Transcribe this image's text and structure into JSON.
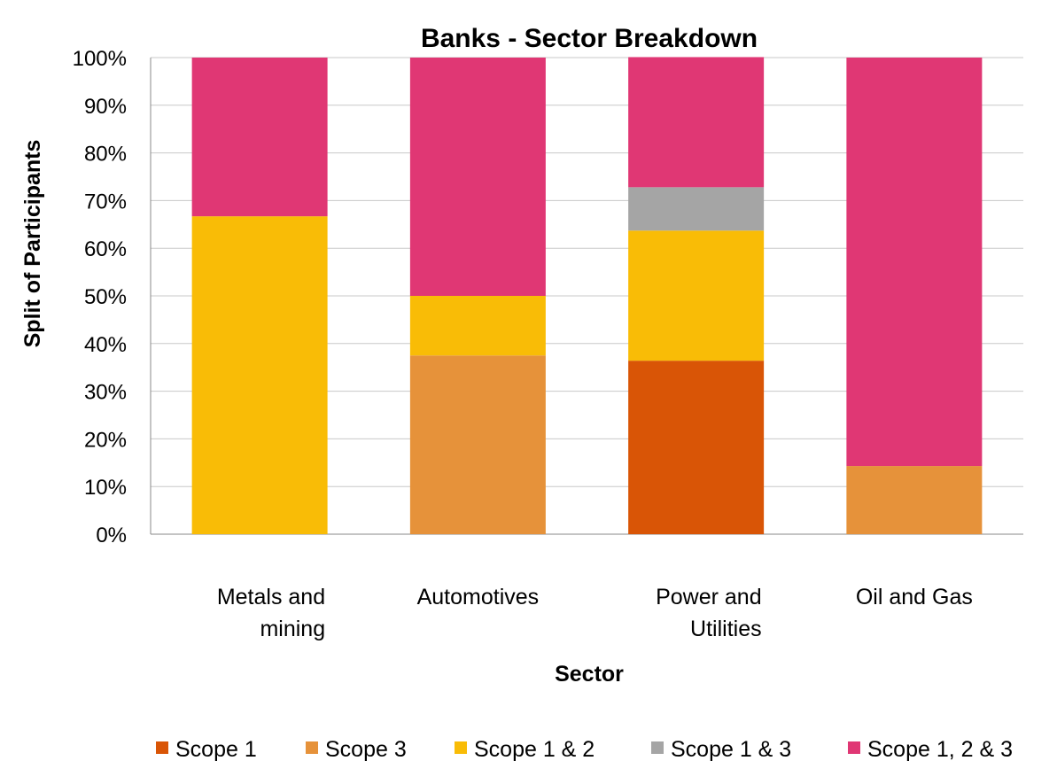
{
  "chart_data": {
    "type": "bar",
    "stacked": true,
    "title": "Banks - Sector Breakdown",
    "xlabel": "Sector",
    "ylabel": "Split of Participants",
    "ylim": [
      0,
      100
    ],
    "yticks": [
      "0%",
      "10%",
      "20%",
      "30%",
      "40%",
      "50%",
      "60%",
      "70%",
      "80%",
      "90%",
      "100%"
    ],
    "grid": true,
    "legend_position": "bottom",
    "categories": [
      [
        "Metals and",
        "mining"
      ],
      [
        "Automotives"
      ],
      [
        "Power and",
        "Utilities"
      ],
      [
        "Oil and Gas"
      ]
    ],
    "series": [
      {
        "name": "Scope 1",
        "color": "#D95506",
        "values": [
          0,
          0,
          36.4,
          0
        ]
      },
      {
        "name": "Scope 3",
        "color": "#E6923A",
        "values": [
          0,
          37.5,
          0,
          14.3
        ]
      },
      {
        "name": "Scope 1 & 2",
        "color": "#F9BC06",
        "values": [
          66.7,
          12.5,
          27.3,
          0
        ]
      },
      {
        "name": "Scope 1 & 3",
        "color": "#A5A5A5",
        "values": [
          0,
          0,
          9.1,
          0
        ]
      },
      {
        "name": "Scope 1, 2 & 3",
        "color": "#E03774",
        "values": [
          33.3,
          50,
          27.3,
          85.7
        ]
      }
    ]
  }
}
